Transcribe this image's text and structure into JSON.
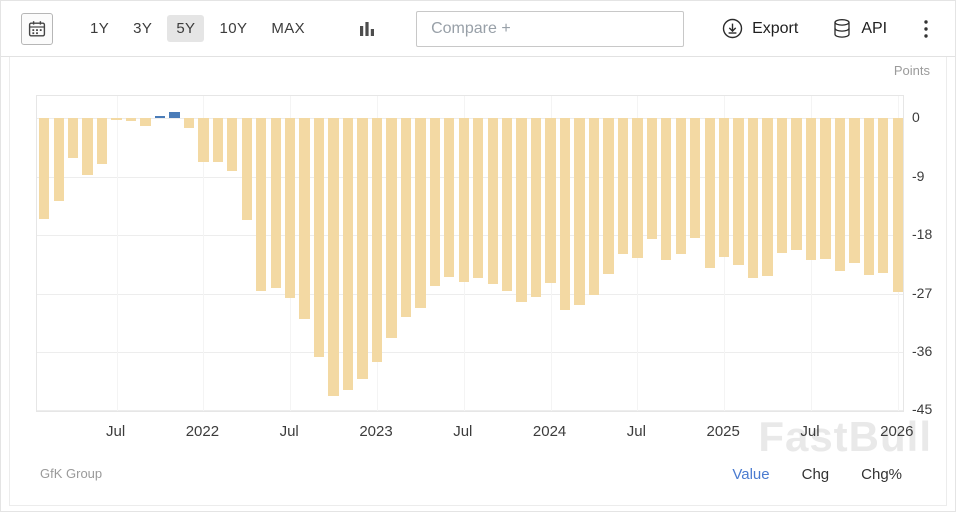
{
  "toolbar": {
    "ranges": [
      {
        "label": "1Y",
        "active": false
      },
      {
        "label": "3Y",
        "active": false
      },
      {
        "label": "5Y",
        "active": true
      },
      {
        "label": "10Y",
        "active": false
      },
      {
        "label": "MAX",
        "active": false
      }
    ],
    "compare_placeholder": "Compare +",
    "export_label": "Export",
    "api_label": "API"
  },
  "chart": {
    "unit_label": "Points",
    "source_label": "GfK Group",
    "watermark": "FastBull",
    "footer_links": [
      {
        "label": "Value",
        "color": "#4a7bd0"
      },
      {
        "label": "Chg",
        "color": "#333333"
      },
      {
        "label": "Chg%",
        "color": "#333333"
      }
    ]
  },
  "chart_data": {
    "type": "bar",
    "ylabel": "Points",
    "categories": [
      "2021-02",
      "2021-03",
      "2021-04",
      "2021-05",
      "2021-06",
      "2021-07",
      "2021-07",
      "2021-09",
      "2021-10",
      "2021-11",
      "2021-12",
      "2022-01",
      "2022-02",
      "2022-03",
      "2022-04",
      "2022-05",
      "2022-06",
      "2022-07",
      "2022-08",
      "2022-09",
      "2022-10",
      "2022-11",
      "2022-12",
      "2023-01",
      "2023-02",
      "2023-03",
      "2023-04",
      "2023-05",
      "2023-06",
      "2023-07",
      "2023-08",
      "2023-09",
      "2023-10",
      "2023-11",
      "2023-12",
      "2024-01",
      "2024-02",
      "2024-03",
      "2024-04",
      "2024-05",
      "2024-06",
      "2024-07",
      "2024-08",
      "2024-09",
      "2024-10",
      "2024-11",
      "2024-12",
      "2025-01",
      "2025-02",
      "2025-03",
      "2025-04",
      "2025-05",
      "2025-06",
      "2025-07",
      "2025-08",
      "2025-09",
      "2025-10",
      "2025-11",
      "2025-12",
      "2026-01"
    ],
    "values": [
      -15.5,
      -12.7,
      -6.1,
      -8.8,
      -7.0,
      -0.3,
      -0.4,
      -1.2,
      0.3,
      0.9,
      -1.6,
      -6.8,
      -6.7,
      -8.1,
      -15.7,
      -26.6,
      -26.2,
      -27.7,
      -30.9,
      -36.8,
      -42.8,
      -41.9,
      -40.1,
      -37.6,
      -33.8,
      -30.6,
      -29.3,
      -25.8,
      -24.4,
      -25.2,
      -24.6,
      -25.6,
      -26.7,
      -28.3,
      -27.6,
      -25.4,
      -29.6,
      -28.8,
      -27.3,
      -24.0,
      -21.0,
      -21.6,
      -18.6,
      -21.9,
      -21.0,
      -18.4,
      -23.1,
      -21.4,
      -22.6,
      -24.6,
      -24.3,
      -20.8,
      -20.3,
      -21.9,
      -21.7,
      -23.6,
      -22.3,
      -24.1,
      -23.9,
      -26.8
    ],
    "ylim": [
      3.4,
      -45.4
    ],
    "yticks": [
      0,
      -9,
      -18,
      -27,
      -36,
      -45
    ],
    "xticks": [
      {
        "index": 5,
        "label": "Jul"
      },
      {
        "index": 11,
        "label": "2022"
      },
      {
        "index": 17,
        "label": "Jul"
      },
      {
        "index": 23,
        "label": "2023"
      },
      {
        "index": 29,
        "label": "Jul"
      },
      {
        "index": 35,
        "label": "2024"
      },
      {
        "index": 41,
        "label": "Jul"
      },
      {
        "index": 47,
        "label": "2025"
      },
      {
        "index": 53,
        "label": "Jul"
      },
      {
        "index": 59,
        "label": "2026"
      }
    ],
    "bar_color": "#f3d9a3",
    "positive_bar_color": "#4a7cb8",
    "grid": true,
    "legend": false
  }
}
